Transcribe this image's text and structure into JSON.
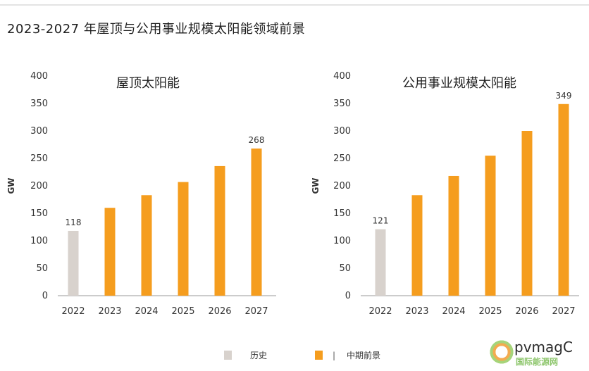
{
  "main_title": "2023-2027 年屋顶与公用事业规模太阳能领域前景",
  "colors": {
    "history": "#d8d2cd",
    "forecast": "#f59d1e",
    "axis": "#9a9a9a"
  },
  "legend": {
    "history_label": "历史",
    "separator": "|",
    "forecast_label": "中期前景"
  },
  "watermark": {
    "icon": "wechat-flower-icon",
    "main_text": "pvmagC",
    "sub_text": "国际能源网"
  },
  "chart_data": [
    {
      "type": "bar",
      "title": "屋顶太阳能",
      "ylabel": "GW",
      "ylim": [
        0,
        400
      ],
      "yticks": [
        0,
        50,
        100,
        150,
        200,
        250,
        300,
        350,
        400
      ],
      "categories": [
        "2022",
        "2023",
        "2024",
        "2025",
        "2026",
        "2027"
      ],
      "series": [
        {
          "name": "历史",
          "values": [
            118,
            null,
            null,
            null,
            null,
            null
          ]
        },
        {
          "name": "中期前景",
          "values": [
            null,
            160,
            183,
            207,
            236,
            268
          ]
        }
      ],
      "data_labels": {
        "2022": "118",
        "2027": "268"
      },
      "grid": false
    },
    {
      "type": "bar",
      "title": "公用事业规模太阳能",
      "ylabel": "GW",
      "ylim": [
        0,
        400
      ],
      "yticks": [
        0,
        50,
        100,
        150,
        200,
        250,
        300,
        350,
        400
      ],
      "categories": [
        "2022",
        "2023",
        "2024",
        "2025",
        "2026",
        "2027"
      ],
      "series": [
        {
          "name": "历史",
          "values": [
            121,
            null,
            null,
            null,
            null,
            null
          ]
        },
        {
          "name": "中期前景",
          "values": [
            null,
            183,
            218,
            255,
            300,
            349
          ]
        }
      ],
      "data_labels": {
        "2022": "121",
        "2027": "349"
      },
      "grid": false
    }
  ]
}
